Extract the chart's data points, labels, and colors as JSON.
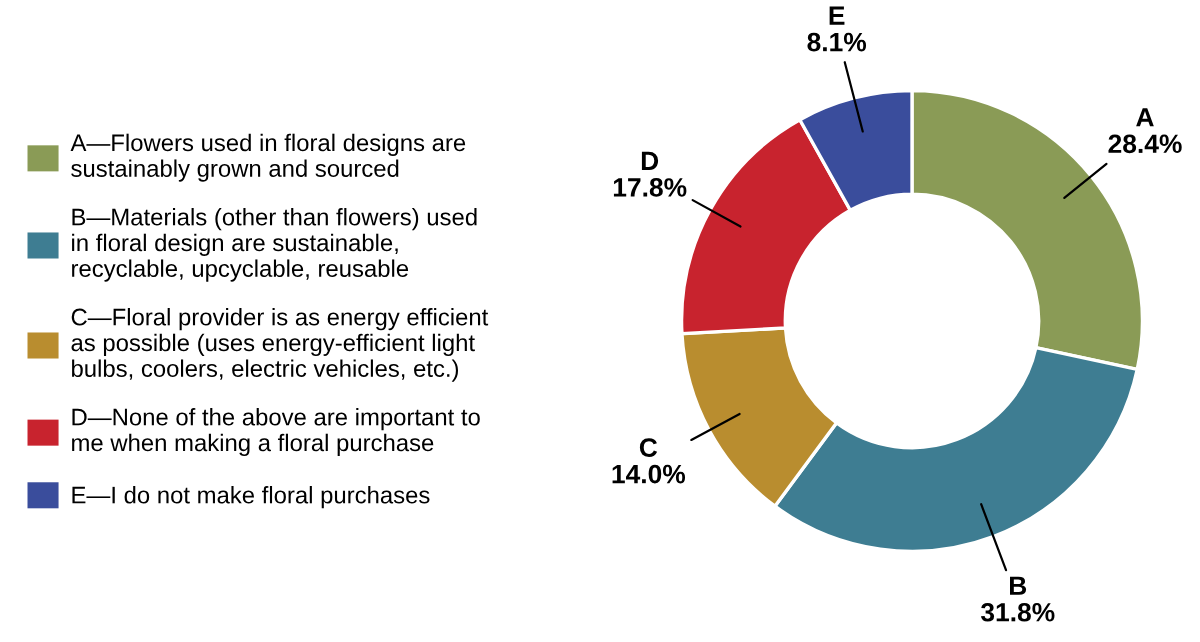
{
  "chart_data": {
    "type": "donut",
    "categories": [
      "A—Flowers used in floral designs are\nsustainably grown and sourced",
      "B—Materials (other than flowers) used\nin floral design are sustainable,\nrecyclable, upcyclable, reusable",
      "C—Floral provider is as energy efficient\nas possible (uses energy-efficient light\nbulbs, coolers, electric vehicles, etc.)",
      "D—None of the above are important to\nme when making a floral purchase",
      "E—I do not make floral purchases"
    ],
    "values": [
      28.4,
      31.8,
      14.0,
      17.8,
      8.1
    ],
    "colors": [
      "#8a9b56",
      "#3e7d92",
      "#b98d2f",
      "#c8232e",
      "#3a4d9c"
    ],
    "value_labels": [
      "A\n28.4%",
      "B\n31.8%",
      "C\n14.0%",
      "D\n17.8%",
      "E\n8.1%"
    ],
    "legend": "left"
  }
}
